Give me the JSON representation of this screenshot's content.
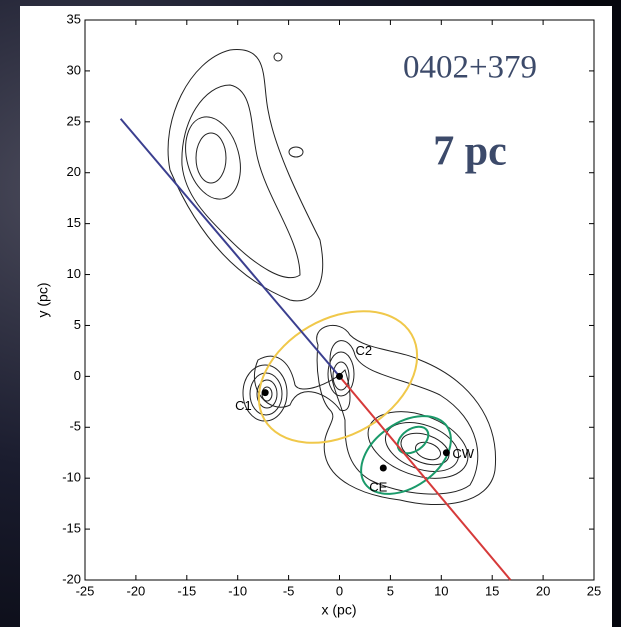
{
  "chart_data": {
    "type": "scatter",
    "title": "0402+379",
    "subtitle": "7 pc",
    "x_label": "x (pc)",
    "y_label": "y (pc)",
    "xlim": [
      -25,
      25
    ],
    "ylim": [
      -20,
      35
    ],
    "xticks": [
      -25,
      -20,
      -15,
      -10,
      -5,
      0,
      5,
      10,
      15,
      20,
      25
    ],
    "yticks": [
      -20,
      -15,
      -10,
      -5,
      0,
      5,
      10,
      15,
      20,
      25,
      30,
      35
    ],
    "points": {
      "labels": [
        "C1",
        "C2",
        "CE",
        "CW"
      ],
      "x": [
        -7.3,
        0,
        4.3,
        10.5
      ],
      "y": [
        -1.6,
        0,
        -9,
        -7.5
      ],
      "color": "#000000"
    },
    "lines": [
      {
        "color": "#3b3f8f",
        "x": [
          -21.5,
          0
        ],
        "y": [
          25.3,
          0
        ]
      },
      {
        "color": "#d63a3a",
        "x": [
          0,
          16.8
        ],
        "y": [
          0,
          -20
        ]
      }
    ]
  }
}
